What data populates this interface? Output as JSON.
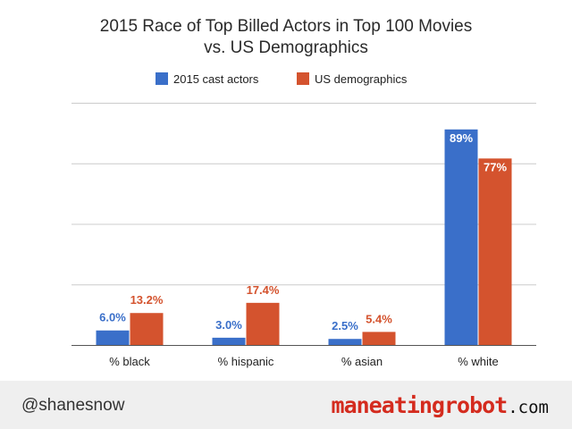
{
  "title_line1": "2015 Race of Top Billed Actors in Top 100 Movies",
  "title_line2": "vs. US Demographics",
  "footer": {
    "handle": "@shanesnow",
    "brand_logo": "maneatingrobot",
    "brand_tld": ".com"
  },
  "chart_data": {
    "type": "bar",
    "title": "2015 Race of Top Billed Actors in Top 100 Movies vs. US Demographics",
    "categories": [
      "% black",
      "% hispanic",
      "% asian",
      "% white"
    ],
    "series": [
      {
        "name": "2015 cast actors",
        "color": "#3a6fc9",
        "values": [
          6.0,
          3.0,
          2.5,
          89
        ],
        "labels": [
          "6.0%",
          "3.0%",
          "2.5%",
          "89%"
        ]
      },
      {
        "name": "US demographics",
        "color": "#d4532e",
        "values": [
          13.2,
          17.4,
          5.4,
          77
        ],
        "labels": [
          "13.2%",
          "17.4%",
          "5.4%",
          "77%"
        ]
      }
    ],
    "ylim": [
      0,
      100
    ],
    "grid": true,
    "legend_position": "top",
    "xlabel": "",
    "ylabel": ""
  }
}
